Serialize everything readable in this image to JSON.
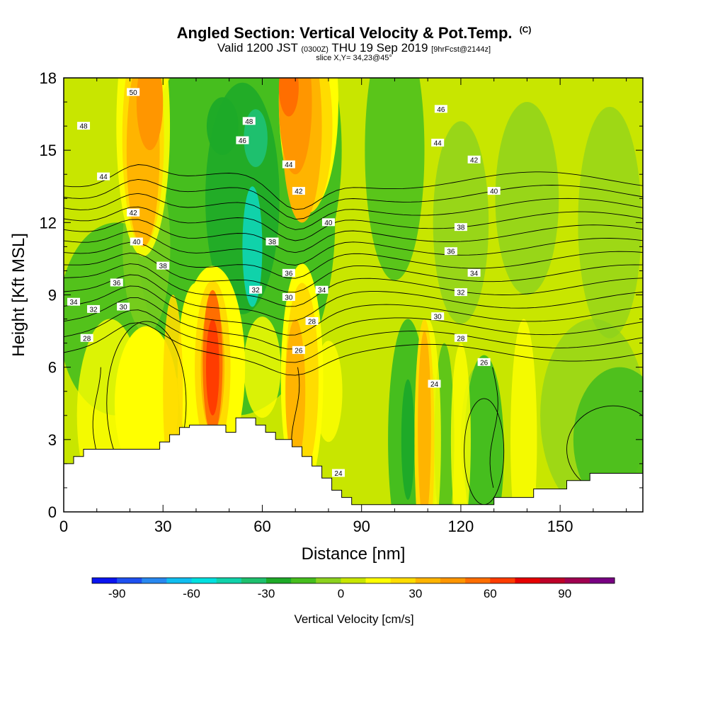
{
  "header": {
    "title": "Angled Section: Vertical Velocity & Pot.Temp.",
    "copyright": "(C)",
    "valid_prefix": "Valid 1200 JST",
    "valid_utc": "(0300Z)",
    "valid_date": "THU 19 Sep 2019",
    "forecast": "[9hrFcst@2144z]",
    "slice": "slice X,Y= 34,23@45°"
  },
  "chart_data": {
    "type": "heatmap",
    "xlabel": "Distance [nm]",
    "ylabel": "Height [Kft MSL]",
    "xlim": [
      0,
      175
    ],
    "ylim": [
      0,
      18
    ],
    "x_ticks": [
      0,
      30,
      60,
      90,
      120,
      150
    ],
    "y_ticks": [
      0,
      3,
      6,
      9,
      12,
      15,
      18
    ],
    "colorbar": {
      "label": "Vertical Velocity [cm/s]",
      "ticks": [
        -90,
        -60,
        -30,
        0,
        30,
        60,
        90
      ],
      "range": [
        -100,
        110
      ],
      "colors": [
        "#0a14f0",
        "#1e50f0",
        "#2888f0",
        "#10bef0",
        "#00e0e0",
        "#10d2aa",
        "#1ec06e",
        "#1eaa28",
        "#46be1e",
        "#8cd21e",
        "#c8e600",
        "#ffff00",
        "#ffdc00",
        "#ffb400",
        "#ff9600",
        "#ff6e00",
        "#ff3c00",
        "#e60000",
        "#be0028",
        "#a00050",
        "#780082"
      ]
    },
    "theta_contours": [
      {
        "label": "24",
        "y_avg": 4.2
      },
      {
        "label": "26",
        "y_avg": 6.3
      },
      {
        "label": "28",
        "y_avg": 7.2
      },
      {
        "label": "30",
        "y_avg": 8.3
      },
      {
        "label": "32",
        "y_avg": 8.9
      },
      {
        "label": "34",
        "y_avg": 9.6
      },
      {
        "label": "36",
        "y_avg": 10.3
      },
      {
        "label": "38",
        "y_avg": 11.2
      },
      {
        "label": "40",
        "y_avg": 12.3
      },
      {
        "label": "42",
        "y_avg": 13.5
      },
      {
        "label": "44",
        "y_avg": 14.8
      },
      {
        "label": "46",
        "y_avg": 16.2
      },
      {
        "label": "48",
        "y_avg": 16.8
      },
      {
        "label": "50",
        "y_avg": 17.6
      }
    ],
    "theta_labels": [
      {
        "text": "50",
        "x": 21,
        "y": 17.4
      },
      {
        "text": "48",
        "x": 6,
        "y": 16.0
      },
      {
        "text": "48",
        "x": 56,
        "y": 16.2
      },
      {
        "text": "46",
        "x": 54,
        "y": 15.4
      },
      {
        "text": "46",
        "x": 114,
        "y": 16.7
      },
      {
        "text": "44",
        "x": 12,
        "y": 13.9
      },
      {
        "text": "44",
        "x": 68,
        "y": 14.4
      },
      {
        "text": "44",
        "x": 113,
        "y": 15.3
      },
      {
        "text": "42",
        "x": 21,
        "y": 12.4
      },
      {
        "text": "42",
        "x": 71,
        "y": 13.3
      },
      {
        "text": "42",
        "x": 124,
        "y": 14.6
      },
      {
        "text": "40",
        "x": 22,
        "y": 11.2
      },
      {
        "text": "40",
        "x": 80,
        "y": 12.0
      },
      {
        "text": "40",
        "x": 130,
        "y": 13.3
      },
      {
        "text": "38",
        "x": 30,
        "y": 10.2
      },
      {
        "text": "38",
        "x": 63,
        "y": 11.2
      },
      {
        "text": "38",
        "x": 120,
        "y": 11.8
      },
      {
        "text": "36",
        "x": 16,
        "y": 9.5
      },
      {
        "text": "36",
        "x": 68,
        "y": 9.9
      },
      {
        "text": "36",
        "x": 117,
        "y": 10.8
      },
      {
        "text": "34",
        "x": 3,
        "y": 8.7
      },
      {
        "text": "34",
        "x": 78,
        "y": 9.2
      },
      {
        "text": "34",
        "x": 124,
        "y": 9.9
      },
      {
        "text": "32",
        "x": 9,
        "y": 8.4
      },
      {
        "text": "32",
        "x": 58,
        "y": 9.2
      },
      {
        "text": "32",
        "x": 120,
        "y": 9.1
      },
      {
        "text": "30",
        "x": 18,
        "y": 8.5
      },
      {
        "text": "30",
        "x": 68,
        "y": 8.9
      },
      {
        "text": "30",
        "x": 113,
        "y": 8.1
      },
      {
        "text": "28",
        "x": 7,
        "y": 7.2
      },
      {
        "text": "28",
        "x": 75,
        "y": 7.9
      },
      {
        "text": "28",
        "x": 120,
        "y": 7.2
      },
      {
        "text": "26",
        "x": 71,
        "y": 6.7
      },
      {
        "text": "26",
        "x": 127,
        "y": 6.2
      },
      {
        "text": "24",
        "x": 112,
        "y": 5.3
      },
      {
        "text": "24",
        "x": 83,
        "y": 1.6
      }
    ],
    "terrain": [
      [
        0,
        2.0
      ],
      [
        3,
        2.0
      ],
      [
        3,
        2.3
      ],
      [
        6,
        2.3
      ],
      [
        6,
        2.6
      ],
      [
        9,
        2.6
      ],
      [
        9,
        2.6
      ],
      [
        29,
        2.6
      ],
      [
        29,
        2.9
      ],
      [
        32,
        2.9
      ],
      [
        32,
        3.2
      ],
      [
        35,
        3.2
      ],
      [
        35,
        3.5
      ],
      [
        38,
        3.5
      ],
      [
        38,
        3.6
      ],
      [
        49,
        3.6
      ],
      [
        49,
        3.3
      ],
      [
        52,
        3.3
      ],
      [
        52,
        3.9
      ],
      [
        58,
        3.9
      ],
      [
        58,
        3.6
      ],
      [
        61,
        3.6
      ],
      [
        61,
        3.3
      ],
      [
        64,
        3.3
      ],
      [
        64,
        3.0
      ],
      [
        69,
        3.0
      ],
      [
        69,
        2.7
      ],
      [
        72,
        2.7
      ],
      [
        72,
        2.3
      ],
      [
        75,
        2.3
      ],
      [
        75,
        1.9
      ],
      [
        78,
        1.9
      ],
      [
        78,
        1.4
      ],
      [
        81,
        1.4
      ],
      [
        81,
        0.9
      ],
      [
        84,
        0.9
      ],
      [
        84,
        0.6
      ],
      [
        87,
        0.6
      ],
      [
        87,
        0.3
      ],
      [
        130,
        0.3
      ],
      [
        130,
        0.6
      ],
      [
        142,
        0.6
      ],
      [
        142,
        0.95
      ],
      [
        152,
        0.95
      ],
      [
        152,
        1.3
      ],
      [
        159,
        1.3
      ],
      [
        159,
        1.6
      ],
      [
        175,
        1.6
      ]
    ]
  }
}
